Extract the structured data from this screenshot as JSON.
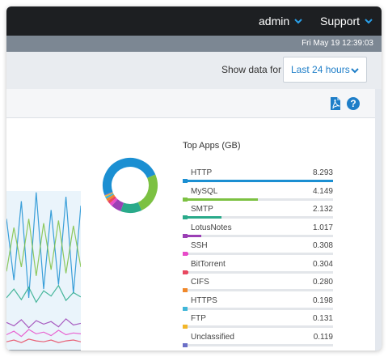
{
  "header": {
    "admin_label": "admin",
    "support_label": "Support"
  },
  "datetime": "Fri May 19 12:39:03",
  "filter": {
    "label": "Show data for",
    "selected": "Last 24 hours"
  },
  "toolbar": {
    "icons": [
      "pdf-icon",
      "help-icon"
    ]
  },
  "colors": {
    "accent": "#1e7ec8",
    "topbar": "#1d1f22"
  },
  "top_apps": {
    "title": "Top Apps (GB)",
    "items": [
      {
        "name": "HTTP",
        "value": "8.293",
        "color": "#1b8fd2"
      },
      {
        "name": "MySQL",
        "value": "4.149",
        "color": "#7cc142"
      },
      {
        "name": "SMTP",
        "value": "2.132",
        "color": "#2aaa8a"
      },
      {
        "name": "LotusNotes",
        "value": "1.017",
        "color": "#9b3fb5"
      },
      {
        "name": "SSH",
        "value": "0.308",
        "color": "#e84bc9"
      },
      {
        "name": "BitTorrent",
        "value": "0.304",
        "color": "#e84860"
      },
      {
        "name": "CIFS",
        "value": "0.280",
        "color": "#f0882a"
      },
      {
        "name": "HTTPS",
        "value": "0.198",
        "color": "#3fb6d8"
      },
      {
        "name": "FTP",
        "value": "0.131",
        "color": "#f2b62a"
      },
      {
        "name": "Unclassified",
        "value": "0.119",
        "color": "#6b6fc7"
      }
    ]
  },
  "chart_data": [
    {
      "type": "pie",
      "categories": [
        "HTTP",
        "MySQL",
        "SMTP",
        "LotusNotes",
        "SSH",
        "BitTorrent",
        "CIFS",
        "HTTPS",
        "FTP",
        "Unclassified"
      ],
      "values": [
        8.293,
        4.149,
        2.132,
        1.017,
        0.308,
        0.304,
        0.28,
        0.198,
        0.131,
        0.119
      ],
      "colors": [
        "#1b8fd2",
        "#7cc142",
        "#2aaa8a",
        "#9b3fb5",
        "#e84bc9",
        "#e84860",
        "#f0882a",
        "#3fb6d8",
        "#f2b62a",
        "#6b6fc7"
      ]
    },
    {
      "type": "area",
      "series": [
        {
          "values": [
            150,
            80,
            170,
            60,
            180,
            70,
            160,
            75,
            175,
            65,
            165
          ],
          "color": "#1b8fd2"
        },
        {
          "values": [
            90,
            140,
            95,
            150,
            85,
            145,
            92,
            148,
            88,
            142,
            95
          ],
          "color": "#7cc142"
        },
        {
          "values": [
            60,
            70,
            58,
            72,
            55,
            68,
            62,
            74,
            57,
            66,
            61
          ],
          "color": "#2aaa8a"
        },
        {
          "values": [
            32,
            28,
            35,
            26,
            34,
            30,
            33,
            27,
            36,
            29,
            31
          ],
          "color": "#9b3fb5"
        },
        {
          "values": [
            18,
            22,
            16,
            24,
            19,
            21,
            17,
            23,
            18,
            20,
            19
          ],
          "color": "#e84bc9"
        },
        {
          "values": [
            10,
            12,
            9,
            13,
            11,
            10,
            12,
            9,
            11,
            12,
            10
          ],
          "color": "#e84860"
        }
      ],
      "ylim": [
        0,
        200
      ]
    }
  ]
}
